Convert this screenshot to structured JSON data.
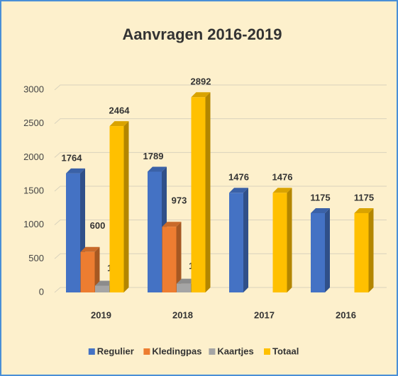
{
  "chart_data": {
    "type": "bar3d",
    "title": "Aanvragen 2016-2019",
    "categories": [
      "2019",
      "2018",
      "2017",
      "2016"
    ],
    "series": [
      {
        "name": "Regulier",
        "color": "#4472c4",
        "values": [
          1764,
          1789,
          1476,
          1175
        ]
      },
      {
        "name": "Kledingpas",
        "color": "#ed7d31",
        "values": [
          600,
          973,
          null,
          null
        ]
      },
      {
        "name": "Kaartjes",
        "color": "#a5a5a5",
        "values": [
          100,
          130,
          null,
          null
        ]
      },
      {
        "name": "Totaal",
        "color": "#ffc000",
        "values": [
          2464,
          2892,
          1476,
          1175
        ]
      }
    ],
    "ylim": [
      0,
      3000
    ],
    "yticks": [
      0,
      500,
      1000,
      1500,
      2000,
      2500,
      3000
    ],
    "grid": true,
    "legend": "bottom"
  }
}
